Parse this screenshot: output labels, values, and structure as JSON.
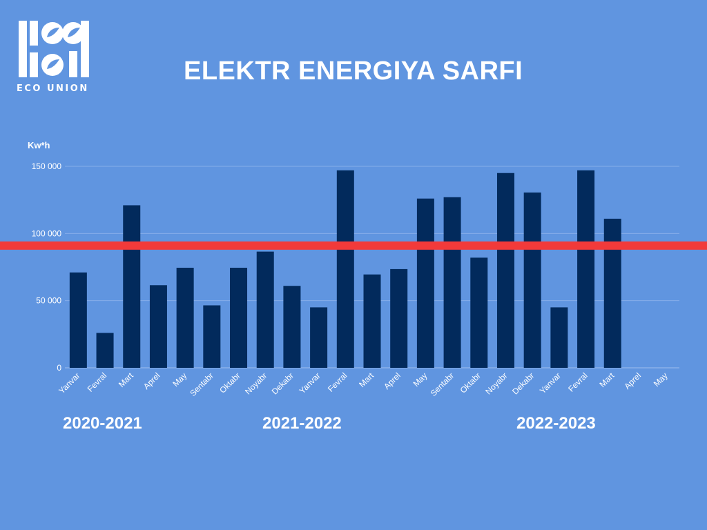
{
  "logo": {
    "text": "ECO UNION"
  },
  "header": {
    "title": "ELEKTR ENERGIYA SARFI"
  },
  "colors": {
    "background": "#6095e0",
    "bars": "#022a5c",
    "reference_line": "#f23a3a",
    "text": "#ffffff"
  },
  "chart_data": {
    "type": "bar",
    "title": "ELEKTR ENERGIYA SARFI",
    "ylabel": "Kw*h",
    "ylim": [
      0,
      150000
    ],
    "yticks": [
      0,
      50000,
      100000,
      150000
    ],
    "ytick_labels": [
      "0",
      "50 000",
      "100 000",
      "150 000"
    ],
    "grid": true,
    "categories": [
      "Yanvar",
      "Fevral",
      "Mart",
      "Aprel",
      "May",
      "Sentabr",
      "Oktabr",
      "Noyabr",
      "Dekabr",
      "Yanvar",
      "Fevral",
      "Mart",
      "Aprel",
      "May",
      "Sentabr",
      "Oktabr",
      "Noyabr",
      "Dekabr",
      "Yanvar",
      "Fevral",
      "Mart",
      "Aprel",
      "May"
    ],
    "values": [
      71000,
      26000,
      121000,
      61500,
      74500,
      46500,
      74500,
      86500,
      61000,
      45000,
      147000,
      69500,
      73500,
      126000,
      127000,
      82000,
      145000,
      130500,
      45000,
      147000,
      111000,
      null,
      null
    ],
    "reference_line": {
      "value": 91000
    },
    "season_labels": [
      "2020-2021",
      "2021-2022",
      "2022-2023"
    ]
  }
}
